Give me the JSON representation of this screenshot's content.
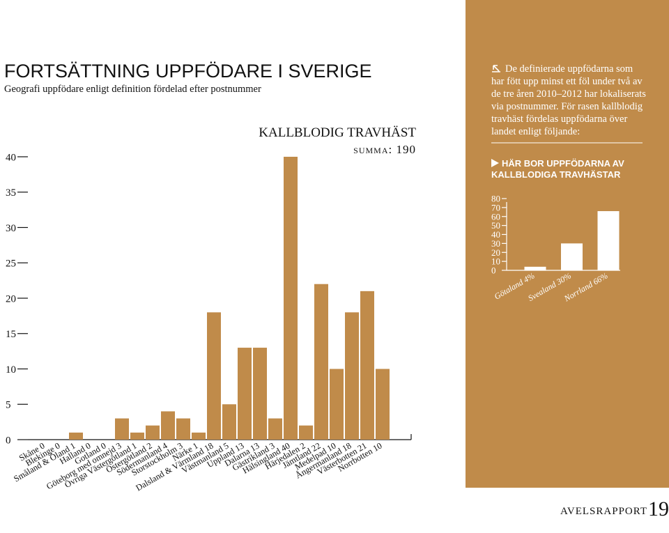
{
  "header": {
    "title": "FORTSÄTTNING UPPFÖDARE I SVERIGE",
    "subtitle": "Geografi uppfödare enligt definition fördelad efter postnummer"
  },
  "chart_data": [
    {
      "type": "bar",
      "title": "KALLBLODIG TRAVHÄST",
      "subtitle": "summa: 190",
      "categories": [
        "Skåne 0",
        "Blekinge 0",
        "Småland & Öland 1",
        "Halland 0",
        "Gotland 0",
        "Göteborg med omnejd 3",
        "Övriga Västergötland 1",
        "Östergötland 2",
        "Södermanland 4",
        "Storstockholm 3",
        "Närke 1",
        "Dalsland & Värmland 18",
        "Västmanland 5",
        "Uppland 13",
        "Dalarna 13",
        "Gästrikland 3",
        "Hälsingland 40",
        "Härjedalen 2",
        "Jämtland 22",
        "Medelpad 10",
        "Ångermanland 18",
        "Västerbotten 21",
        "Norrbotten 10"
      ],
      "values": [
        0,
        0,
        1,
        0,
        0,
        3,
        1,
        2,
        4,
        3,
        1,
        18,
        5,
        13,
        13,
        3,
        40,
        2,
        22,
        10,
        18,
        21,
        10
      ],
      "color": "#c08b4a",
      "ylim": [
        0,
        40
      ],
      "yticks": [
        0,
        5,
        10,
        15,
        20,
        25,
        30,
        35,
        40
      ]
    },
    {
      "type": "bar",
      "title": "HÄR BOR UPPFÖDARNA AV KALLBLODIGA TRAVHÄSTAR",
      "categories": [
        "Götaland 4%",
        "Svealand 30%",
        "Norrland 66%"
      ],
      "values": [
        4,
        30,
        66
      ],
      "color": "#ffffff",
      "ylim": [
        0,
        80
      ],
      "yticks": [
        0,
        10,
        20,
        30,
        40,
        50,
        60,
        70,
        80
      ]
    }
  ],
  "sidebar": {
    "text": "De definierade uppfödarna som har fött upp minst ett föl under två av de tre åren 2010–2012 har lokaliserats via postnummer. För rasen kallblodig travhäst fördelas uppfödarna över landet enligt följande:"
  },
  "footer": {
    "label": "AVELSRAPPORT",
    "page": "19"
  }
}
